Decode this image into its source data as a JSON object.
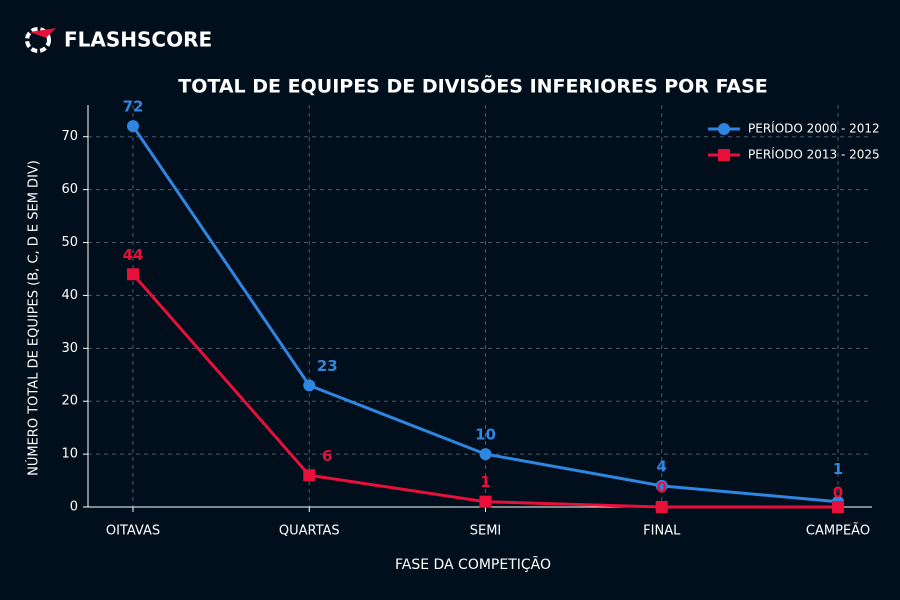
{
  "brand": "FLASHSCORE",
  "chart_data": {
    "type": "line",
    "title": "TOTAL DE EQUIPES DE DIVISÕES INFERIORES POR FASE",
    "x_label": "FASE DA COMPETIÇÃO",
    "y_label": "NÚMERO TOTAL DE EQUIPES (B, C, D E SEM DIV)",
    "categories": [
      "OITAVAS",
      "QUARTAS",
      "SEMI",
      "FINAL",
      "CAMPEÃO"
    ],
    "series": [
      {
        "name": "PERÍODO 2000 - 2012",
        "color": "#2f86e0",
        "marker": "circle",
        "values": [
          72,
          23,
          10,
          4,
          1
        ]
      },
      {
        "name": "PERÍODO 2013 - 2025",
        "color": "#e8103a",
        "marker": "square",
        "values": [
          44,
          6,
          1,
          0,
          0
        ]
      }
    ],
    "ylim": [
      0,
      76
    ],
    "yticks": [
      0,
      10,
      20,
      30,
      40,
      50,
      60,
      70
    ],
    "grid": true,
    "legend": "upper right"
  }
}
